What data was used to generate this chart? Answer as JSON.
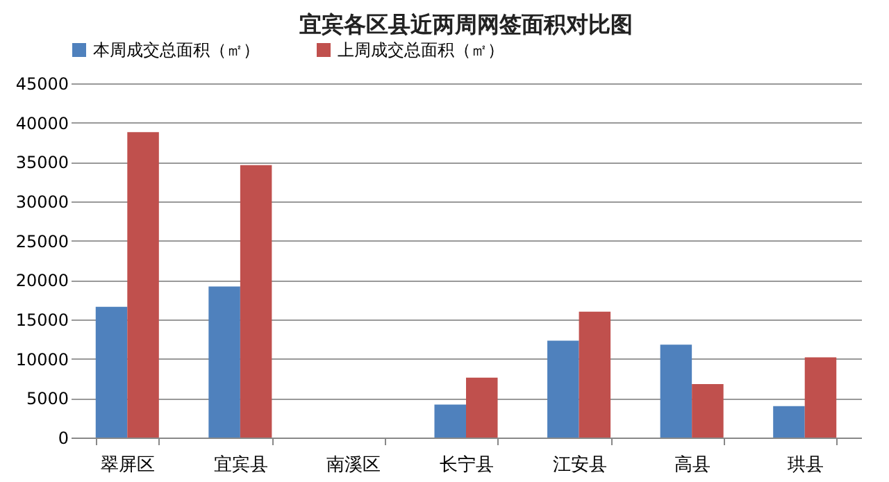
{
  "chart_data": {
    "type": "bar",
    "title": "宜宾各区县近两周网签面积对比图",
    "categories": [
      "翠屏区",
      "宜宾县",
      "南溪区",
      "长宁县",
      "江安县",
      "高县",
      "珙县"
    ],
    "series": [
      {
        "name": "本周成交总面积（㎡）",
        "color": "#4f81bd",
        "values": [
          16600,
          19200,
          0,
          4200,
          12300,
          11800,
          4000
        ]
      },
      {
        "name": "上周成交总面积（㎡）",
        "color": "#c0504d",
        "values": [
          38800,
          34600,
          0,
          7600,
          16000,
          6800,
          10200
        ]
      }
    ],
    "ylim": [
      0,
      45000
    ],
    "yticks": [
      0,
      5000,
      10000,
      15000,
      20000,
      25000,
      30000,
      35000,
      40000,
      45000
    ],
    "grid": "y",
    "legend": "top"
  }
}
